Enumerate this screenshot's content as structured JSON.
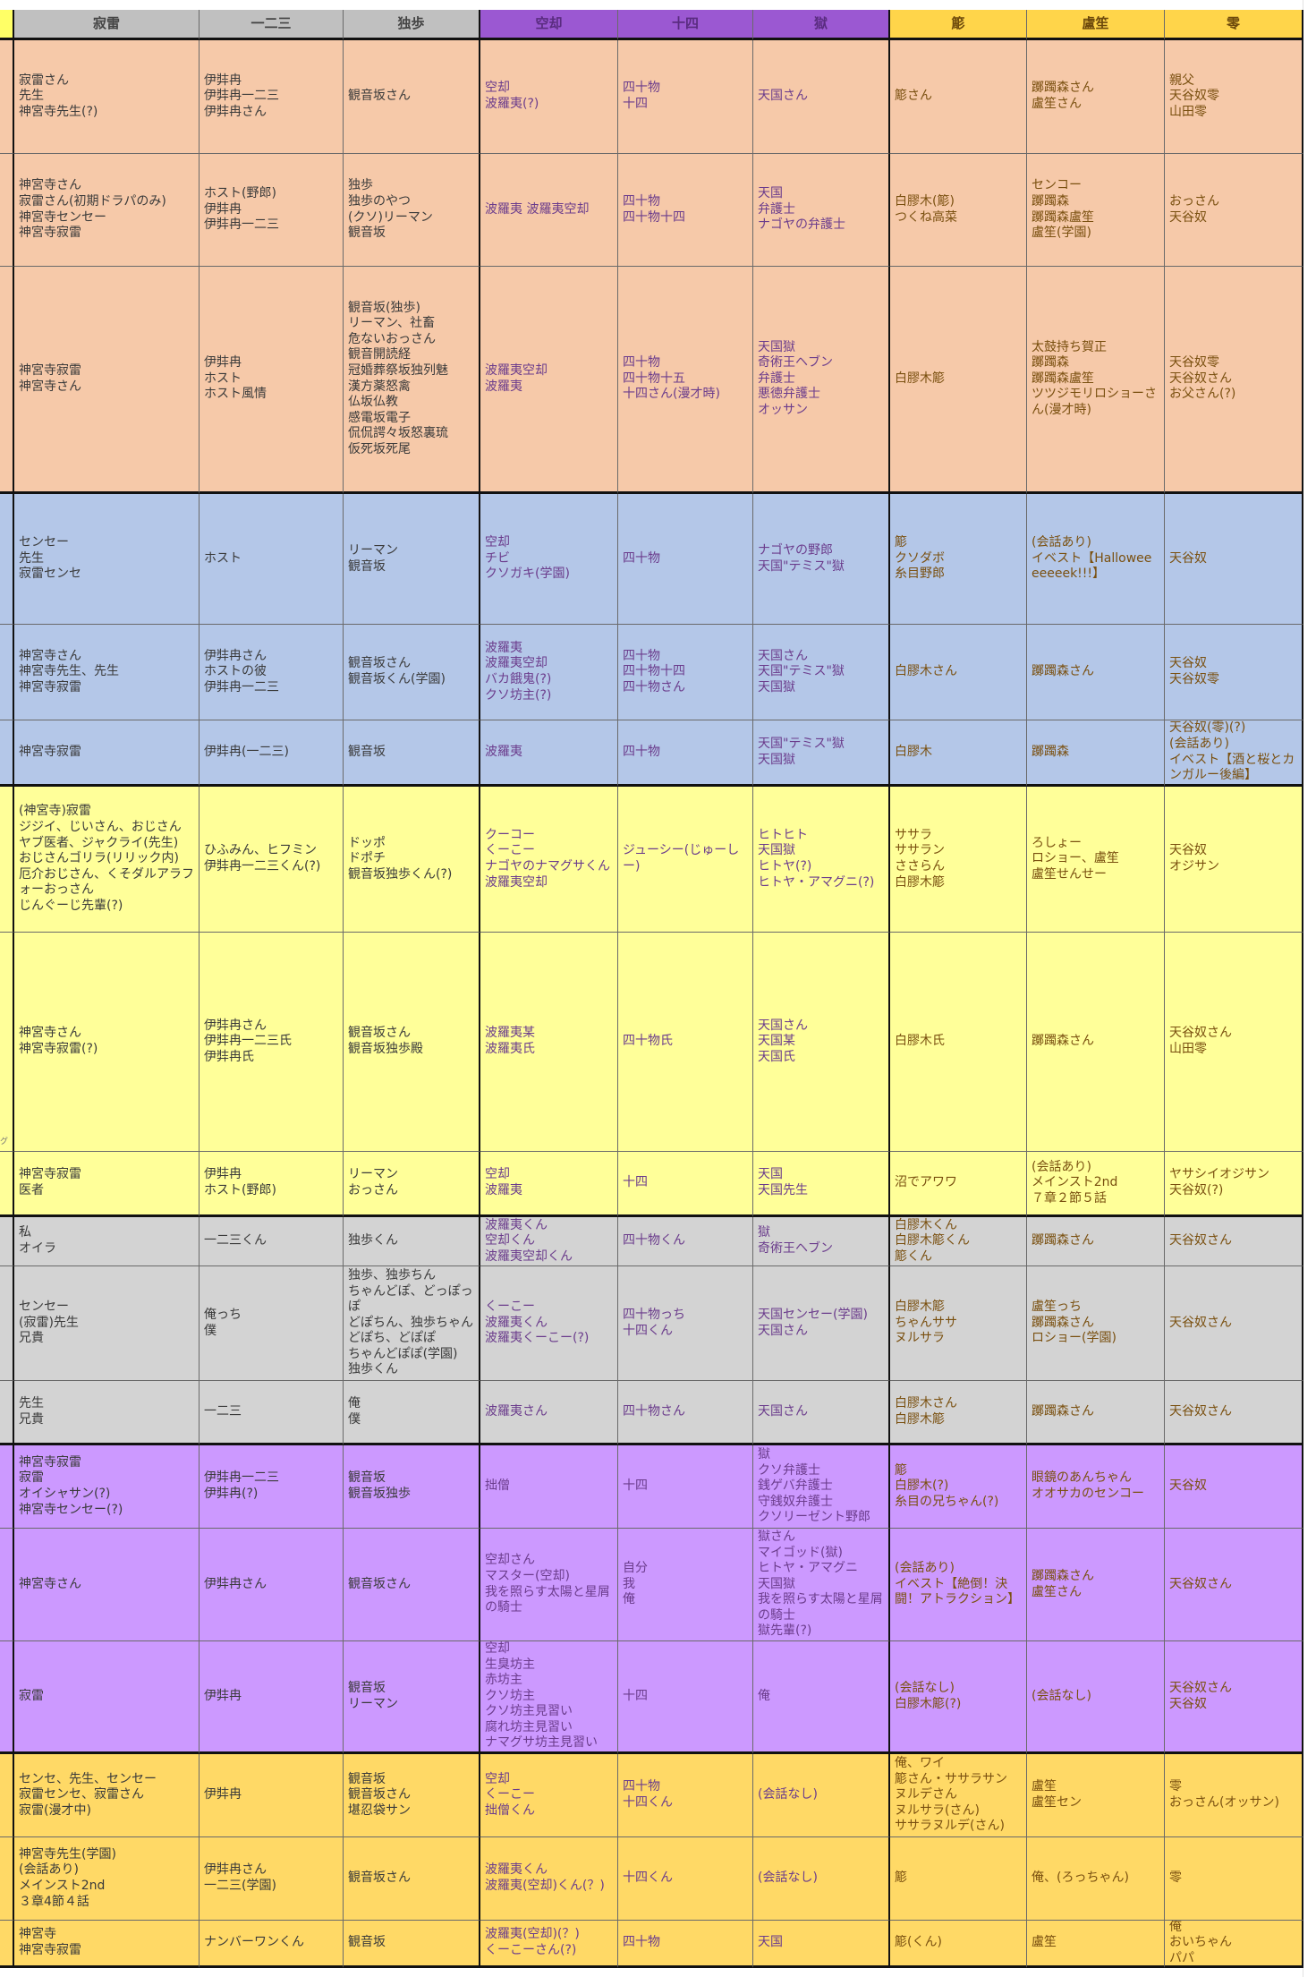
{
  "colors": {
    "header_gray": "#c0c0c0",
    "header_purple": "#9b58d2",
    "header_yellow": "#ffd54a",
    "strip_header": "#ffff66",
    "groups": [
      "#f6c9a9",
      "#b4c7e8",
      "#ffff99",
      "#d3d3d3",
      "#cc99ff",
      "#ffd966"
    ]
  },
  "headers": [
    "寂雷",
    "一二三",
    "独歩",
    "空却",
    "十四",
    "獄",
    "簓",
    "盧笙",
    "零"
  ],
  "strip_text": [
    "",
    "",
    "",
    "",
    "",
    "",
    "",
    "グ",
    "",
    "",
    "",
    "",
    "",
    "",
    "",
    "",
    "",
    ""
  ],
  "rows": [
    {
      "group": 0,
      "cells": [
        "寂雷さん\n先生\n神宮寺先生(?)",
        "伊弉冉\n伊弉冉一二三\n伊弉冉さん",
        "観音坂さん",
        "空却\n波羅夷(?)",
        "四十物\n十四",
        "天国さん",
        "簓さん",
        "躑躅森さん\n盧笙さん",
        "親父\n天谷奴零\n山田零"
      ]
    },
    {
      "group": 0,
      "cells": [
        "神宮寺さん\n寂雷さん(初期ドラパのみ)\n神宮寺センセー\n神宮寺寂雷",
        "ホスト(野郎)\n伊弉冉\n伊弉冉一二三",
        "独歩\n独歩のやつ\n(クソ)リーマン\n観音坂",
        "波羅夷 波羅夷空却",
        "四十物\n四十物十四",
        "天国\n弁護士\nナゴヤの弁護士",
        "白膠木(簓)\nつくね高菜",
        "センコー\n躑躅森\n躑躅森盧笙\n盧笙(学園)",
        "おっさん\n天谷奴"
      ]
    },
    {
      "group": 0,
      "cells": [
        "神宮寺寂雷\n神宮寺さん",
        "伊弉冉\nホスト\nホスト風情",
        "観音坂(独歩)\nリーマン、社畜\n危ないおっさん\n観音開読経\n冠婚葬祭坂独列魅\n漢方薬怒禽\n仏坂仏教\n感電坂電子\n侃侃諤々坂怒裏琉\n仮死坂死尾",
        "波羅夷空却\n波羅夷",
        "四十物\n四十物十五\n十四さん(漫才時)",
        "天国獄\n奇術王ヘブン\n弁護士\n悪徳弁護士\nオッサン",
        "白膠木簓",
        "太鼓持ち賀正\n躑躅森\n躑躅森盧笙\nツツジモリロショーさん(漫才時)",
        "天谷奴零\n天谷奴さん\nお父さん(?)"
      ]
    },
    {
      "group": 1,
      "cells": [
        "センセー\n先生\n寂雷センセ",
        "ホスト",
        "リーマン\n観音坂",
        "空却\nチビ\nクソガキ(学園)",
        "四十物",
        "ナゴヤの野郎\n天国\"テミス\"獄",
        "簓\nクソダボ\n糸目野郎",
        "(会話あり)\nイベスト【Halloweeeeeeek!!!】",
        "天谷奴"
      ]
    },
    {
      "group": 1,
      "cells": [
        "神宮寺さん\n神宮寺先生、先生\n神宮寺寂雷",
        "伊弉冉さん\nホストの彼\n伊弉冉一二三",
        "観音坂さん\n観音坂くん(学園)",
        "波羅夷\n波羅夷空却\nバカ餓鬼(?)\nクソ坊主(?)",
        "四十物\n四十物十四\n四十物さん",
        "天国さん\n天国\"テミス\"獄\n天国獄",
        "白膠木さん",
        "躑躅森さん",
        "天谷奴\n天谷奴零"
      ]
    },
    {
      "group": 1,
      "cells": [
        "神宮寺寂雷",
        "伊弉冉(一二三)",
        "観音坂",
        "波羅夷",
        "四十物",
        "天国\"テミス\"獄\n天国獄",
        "白膠木",
        "躑躅森",
        "天谷奴(零)(?)\n(会話あり)\nイベスト【酒と桜とカンガルー後編】"
      ]
    },
    {
      "group": 2,
      "cells": [
        "(神宮寺)寂雷\nジジイ、じいさん、おじさん\nヤブ医者、ジャクライ(先生)\nおじさんゴリラ(リリック内)\n厄介おじさん、くそダルアラフォーおっさん\nじんぐーじ先輩(?)",
        "ひふみん、ヒフミン\n伊弉冉一二三くん(?)",
        "ドッポ\nドポチ\n観音坂独歩くん(?)",
        "クーコー\nくーこー\nナゴヤのナマグサくん\n波羅夷空却",
        "ジューシー(じゅーしー)",
        "ヒトヒト\n天国獄\nヒトヤ(?)\nヒトヤ・アマグニ(?)",
        "ササラ\nササラン\nささらん\n白膠木簓",
        "ろしょー\nロショー、盧笙\n盧笙せんせー",
        "天谷奴\nオジサン"
      ]
    },
    {
      "group": 2,
      "cells": [
        "神宮寺さん\n神宮寺寂雷(?)",
        "伊弉冉さん\n伊弉冉一二三氏\n伊弉冉氏",
        "観音坂さん\n観音坂独歩殿",
        "波羅夷某\n波羅夷氏",
        "四十物氏",
        "天国さん\n天国某\n天国氏",
        "白膠木氏",
        "躑躅森さん",
        "天谷奴さん\n山田零"
      ]
    },
    {
      "group": 2,
      "cells": [
        "神宮寺寂雷\n医者",
        "伊弉冉\nホスト(野郎)",
        "リーマン\nおっさん",
        "空却\n波羅夷",
        "十四",
        "天国\n天国先生",
        "沼でアワワ",
        "(会話あり)\nメインスト2nd\n７章２節５話",
        "ヤサシイオジサン\n天谷奴(?)"
      ]
    },
    {
      "group": 3,
      "cells": [
        "私\nオイラ",
        "一二三くん",
        "独歩くん",
        "波羅夷くん\n空却くん\n波羅夷空却くん",
        "四十物くん",
        "獄\n奇術王ヘブン",
        "白膠木くん\n白膠木簓くん\n簓くん",
        "躑躅森さん",
        "天谷奴さん"
      ]
    },
    {
      "group": 3,
      "cells": [
        "センセー\n(寂雷)先生\n兄貴",
        "俺っち\n僕",
        "独歩、独歩ちん\nちゃんどぽ、どっぽっぽ\nどぽちん、独歩ちゃん\nどぽち、どぽぽ\nちゃんどぽぽ(学園)\n独歩くん",
        "くーこー\n波羅夷くん\n波羅夷くーこー(?)",
        "四十物っち\n十四くん",
        "天国センセー(学園)\n天国さん",
        "白膠木簓\nちゃんササ\nヌルサラ",
        "盧笙っち\n躑躅森さん\nロショー(学園)",
        "天谷奴さん"
      ]
    },
    {
      "group": 3,
      "cells": [
        "先生\n兄貴",
        "一二三",
        "俺\n僕",
        "波羅夷さん",
        "四十物さん",
        "天国さん",
        "白膠木さん\n白膠木簓",
        "躑躅森さん",
        "天谷奴さん"
      ]
    },
    {
      "group": 4,
      "cells": [
        "神宮寺寂雷\n寂雷\nオイシャサン(?)\n神宮寺センセー(?)",
        "伊弉冉一二三\n伊弉冉(?)",
        "観音坂\n観音坂独歩",
        "拙僧",
        "十四",
        "獄\nクソ弁護士\n銭ゲバ弁護士\n守銭奴弁護士\nクソリーゼント野郎",
        "簓\n白膠木(?)\n糸目の兄ちゃん(?)",
        "眼鏡のあんちゃん\nオオサカのセンコー",
        "天谷奴"
      ]
    },
    {
      "group": 4,
      "cells": [
        "神宮寺さん",
        "伊弉冉さん",
        "観音坂さん",
        "空却さん\nマスター(空却)\n我を照らす太陽と星屑の騎士",
        "自分\n我\n俺",
        "獄さん\nマイゴッド(獄)\nヒトヤ・アマグニ\n天国獄\n我を照らす太陽と星屑の騎士\n獄先輩(?)",
        "(会話あり)\nイベスト【絶倒！決闘！アトラクション】",
        "躑躅森さん\n盧笙さん",
        "天谷奴さん"
      ]
    },
    {
      "group": 4,
      "cells": [
        "寂雷",
        "伊弉冉",
        "観音坂\nリーマン",
        "空却\n生臭坊主\n赤坊主\nクソ坊主\nクソ坊主見習い\n腐れ坊主見習い\nナマグサ坊主見習い",
        "十四",
        "俺",
        "(会話なし)\n白膠木簓(?)",
        "(会話なし)",
        "天谷奴さん\n天谷奴"
      ]
    },
    {
      "group": 5,
      "cells": [
        "センセ、先生、センセー\n寂雷センセ、寂雷さん\n寂雷(漫才中)",
        "伊弉冉",
        "観音坂\n観音坂さん\n堪忍袋サン",
        "空却\nくーこー\n拙僧くん",
        "四十物\n十四くん",
        "(会話なし)",
        "俺、ワイ\n簓さん・ササラサン\nヌルデさん\nヌルサラ(さん)\nササラヌルデ(さん)",
        "盧笙\n盧笙セン",
        "零\nおっさん(オッサン)"
      ]
    },
    {
      "group": 5,
      "cells": [
        "神宮寺先生(学園)\n(会話あり)\nメインスト2nd\n３章4節４話",
        "伊弉冉さん\n一二三(学園)",
        "観音坂さん",
        "波羅夷くん\n波羅夷(空却)くん(？)",
        "十四くん",
        "(会話なし)",
        "簓",
        "俺、(ろっちゃん)",
        "零"
      ]
    },
    {
      "group": 5,
      "cells": [
        "神宮寺\n神宮寺寂雷",
        "ナンバーワンくん",
        "観音坂",
        "波羅夷(空却)(？)\nくーこーさん(?)",
        "四十物",
        "天国",
        "簓(くん)",
        "盧笙",
        "俺\nおいちゃん\nパパ"
      ]
    }
  ]
}
